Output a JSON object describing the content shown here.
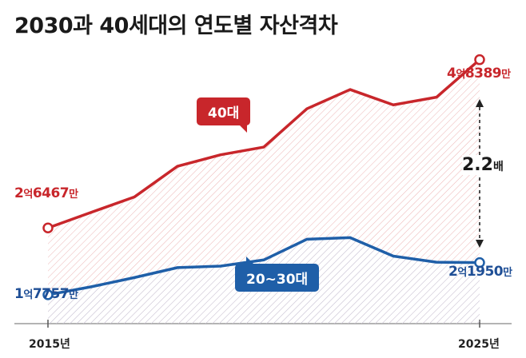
{
  "title": "2030과 40세대의 연도별 자산격차",
  "chart_data": {
    "type": "line",
    "x_labels": [
      "2015년",
      "2025년"
    ],
    "series": [
      {
        "name": "40대",
        "color": "#c8262b",
        "values": [
          26467,
          28500,
          30500,
          34500,
          36000,
          37000,
          42000,
          44500,
          42500,
          43500,
          48389
        ],
        "start_label": {
          "num1": "2",
          "unit1": "억",
          "num2": "6467",
          "unit2": "만"
        },
        "end_label": {
          "num1": "4",
          "unit1": "억",
          "num2": "8389",
          "unit2": "만"
        }
      },
      {
        "name": "20~30대",
        "color": "#1f5fa8",
        "values": [
          17757,
          18800,
          20000,
          21300,
          21500,
          22300,
          25000,
          25200,
          22800,
          22000,
          21950
        ],
        "start_label": {
          "num1": "1",
          "unit1": "억",
          "num2": "7757",
          "unit2": "만"
        },
        "end_label": {
          "num1": "2",
          "unit1": "억",
          "num2": "1950",
          "unit2": "만"
        }
      }
    ],
    "ratio": {
      "value": "2.2",
      "unit": "배"
    },
    "ylim": [
      14000,
      52000
    ]
  }
}
